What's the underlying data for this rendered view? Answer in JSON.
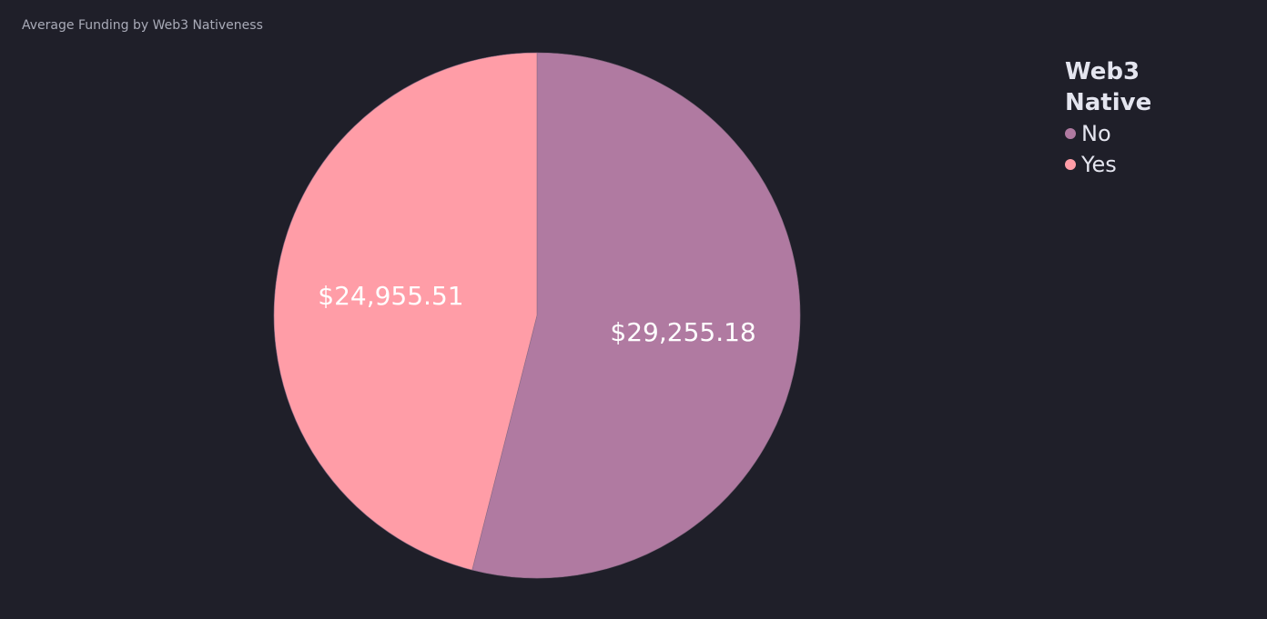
{
  "chart_data": {
    "type": "pie",
    "title": "Average Funding by Web3 Nativeness",
    "legend_title": "Web3 Native",
    "legend_position": "top-right",
    "slices": [
      {
        "label": "No",
        "value": 29255.18,
        "display": "$29,255.18",
        "color": "#b07aa1"
      },
      {
        "label": "Yes",
        "value": 24955.51,
        "display": "$24,955.51",
        "color": "#ff9da7"
      }
    ],
    "start_angle": "top",
    "direction": "clockwise"
  }
}
